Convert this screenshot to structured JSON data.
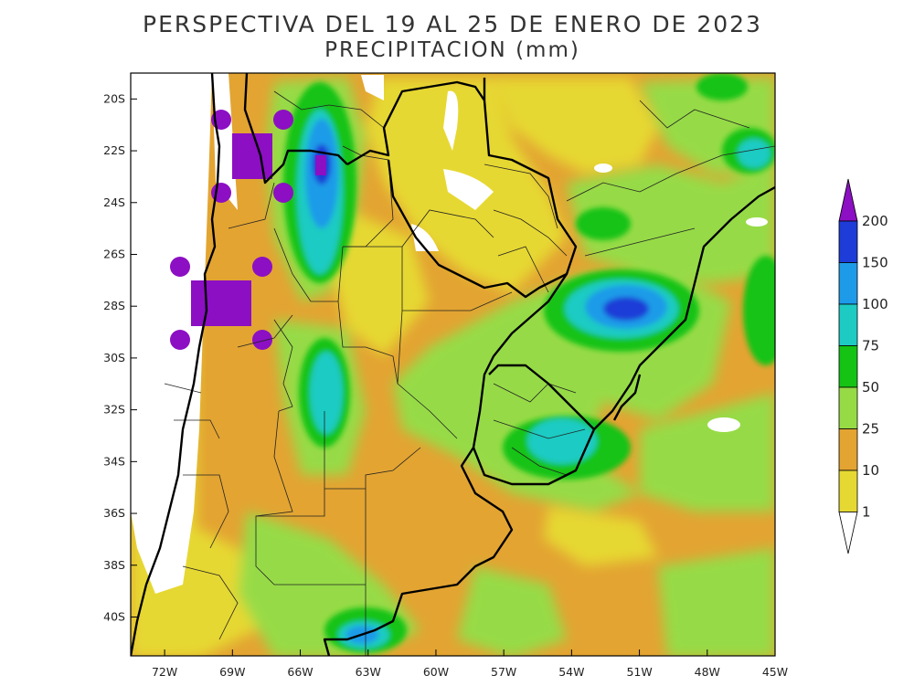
{
  "map": {
    "title": "PERSPECTIVA DEL 19 AL 25 DE ENERO DE 2023",
    "subtitle": "PRECIPITACION (mm)",
    "region": "Southern South America: Argentina, Chile, Uruguay, Paraguay, southern Brazil",
    "lon_range": [
      -73.5,
      -45
    ],
    "lat_range": [
      -41.5,
      -19
    ],
    "x_ticks": [
      "72W",
      "69W",
      "66W",
      "63W",
      "60W",
      "57W",
      "54W",
      "51W",
      "48W",
      "45W"
    ],
    "y_ticks": [
      "20S",
      "22S",
      "24S",
      "26S",
      "28S",
      "30S",
      "32S",
      "34S",
      "36S",
      "38S",
      "40S"
    ],
    "colors": {
      "lt1": "#ffffff",
      "c1_10": "#e6d832",
      "c10_25": "#e3a432",
      "c25_50": "#96db46",
      "c50_75": "#14c314",
      "c75_100": "#1ecbc3",
      "c100_150": "#1e9be8",
      "c150_200": "#1e3cd7",
      "c200": "#8c0fc3"
    }
  },
  "legend": {
    "labels": [
      "200",
      "150",
      "100",
      "75",
      "50",
      "25",
      "10",
      "1"
    ],
    "colors": [
      "#1e3cd7",
      "#1e9be8",
      "#1ecbc3",
      "#14c314",
      "#96db46",
      "#e3a432",
      "#e6d832",
      "#ffffff"
    ],
    "top_arrow_color": "#8c0fc3"
  }
}
